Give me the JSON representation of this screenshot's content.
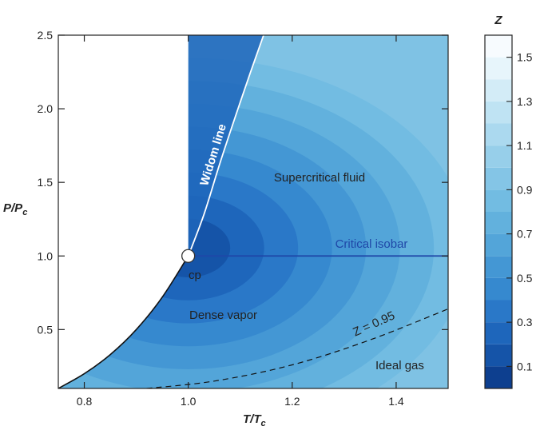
{
  "chart_data": {
    "type": "heatmap",
    "title": "",
    "xlabel": {
      "main": "T/T",
      "sub": "c"
    },
    "ylabel": {
      "main": "P/P",
      "sub": "c"
    },
    "xlim": [
      0.75,
      1.5
    ],
    "ylim": [
      0.1,
      2.5
    ],
    "x_ticks": [
      0.8,
      1.0,
      1.2,
      1.4
    ],
    "x_tick_labels": [
      "0.8",
      "1.0",
      "1.2",
      "1.4"
    ],
    "y_ticks": [
      0.5,
      1.0,
      1.5,
      2.0,
      2.5
    ],
    "y_tick_labels": [
      "0.5",
      "1.0",
      "1.5",
      "2.0",
      "2.5"
    ],
    "colorbar": {
      "label": "Z",
      "range": [
        0,
        1.6
      ],
      "ticks": [
        0.1,
        0.3,
        0.5,
        0.7,
        0.9,
        1.1,
        1.3,
        1.5
      ],
      "tick_labels": [
        "0.1",
        "0.3",
        "0.5",
        "0.7",
        "0.9",
        "1.1",
        "1.3",
        "1.5"
      ],
      "levels": 16,
      "colors": [
        "#0d3f8f",
        "#1554a8",
        "#1e66bb",
        "#2a78c8",
        "#3689cf",
        "#4497d4",
        "#53a5d9",
        "#62b1dd",
        "#72bce2",
        "#84c5e6",
        "#97cfea",
        "#abd9ef",
        "#bfe3f3",
        "#d3ecf7",
        "#e7f5fb",
        "#f7fbfe"
      ]
    },
    "coexistence_curve": [
      [
        0.75,
        0.1
      ],
      [
        0.8,
        0.2
      ],
      [
        0.85,
        0.33
      ],
      [
        0.9,
        0.5
      ],
      [
        0.95,
        0.72
      ],
      [
        1.0,
        1.0
      ]
    ],
    "widom_line": [
      [
        1.0,
        1.0
      ],
      [
        1.03,
        1.28
      ],
      [
        1.06,
        1.62
      ],
      [
        1.09,
        1.94
      ],
      [
        1.12,
        2.25
      ],
      [
        1.145,
        2.5
      ]
    ],
    "critical_isobar": [
      [
        1.0,
        1.0
      ],
      [
        1.5,
        1.0
      ]
    ],
    "z_095_contour": [
      [
        0.92,
        0.1
      ],
      [
        1.05,
        0.15
      ],
      [
        1.2,
        0.26
      ],
      [
        1.35,
        0.43
      ],
      [
        1.5,
        0.64
      ]
    ],
    "critical_point": {
      "x": 1.0,
      "y": 1.0,
      "label": "cp"
    },
    "annotations": {
      "widom": "Widom line",
      "supercritical": "Supercritical fluid",
      "isobar": "Critical isobar",
      "dense_vapor": "Dense vapor",
      "ideal_gas": "Ideal gas",
      "z_label": "Z = 0.95"
    }
  }
}
